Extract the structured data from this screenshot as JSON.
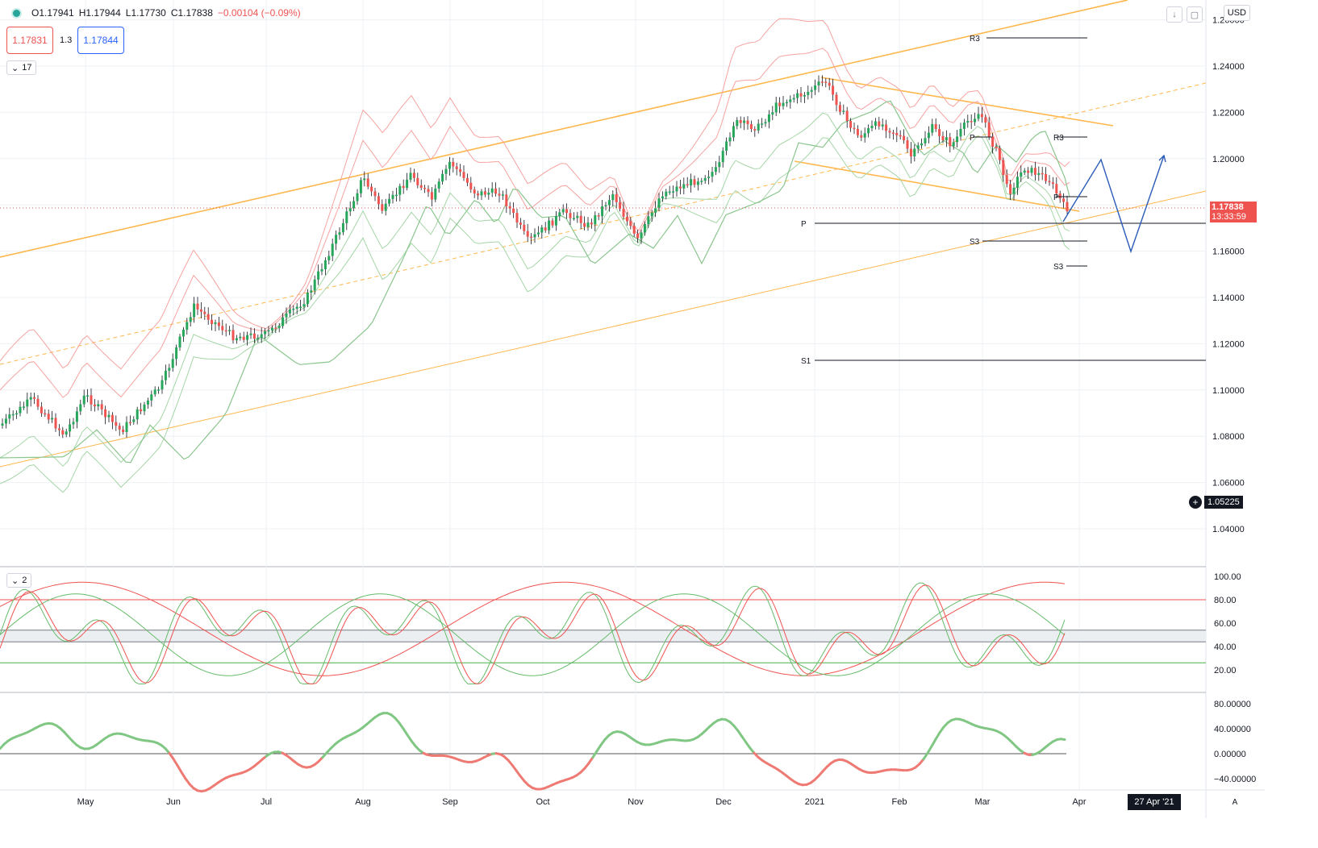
{
  "toolbar": {
    "ohlc": {
      "open": "O1.17941",
      "high": "H1.17944",
      "low": "L1.17730",
      "close": "C1.17838",
      "change": "−0.00104 (−0.09%)"
    },
    "sell_price": "1.17831",
    "spread": "1.3",
    "buy_price": "1.17844",
    "indicators_collapsed_count": "17",
    "currency": "USD"
  },
  "price_axis": {
    "ticks": [
      "1.26000",
      "1.24000",
      "1.22000",
      "1.20000",
      "1.18000",
      "1.16000",
      "1.14000",
      "1.12000",
      "1.10000",
      "1.08000",
      "1.06000",
      "1.04000"
    ],
    "current_price": "1.17838",
    "countdown": "13:33:59",
    "crosshair_price": "1.05225"
  },
  "time_axis": {
    "labels": [
      "May",
      "Jun",
      "Jul",
      "Aug",
      "Sep",
      "Oct",
      "Nov",
      "Dec",
      "2021",
      "Feb",
      "Mar",
      "Apr"
    ],
    "crosshair_date": "27 Apr '21"
  },
  "pivot_labels": [
    "R3",
    "R3",
    "P",
    "P",
    "P",
    "S3",
    "S3",
    "S1"
  ],
  "oscillator_pane": {
    "collapsed_count": "2",
    "axis_ticks": [
      "100.00",
      "80.00",
      "60.00",
      "40.00",
      "20.00"
    ]
  },
  "momentum_pane": {
    "axis_ticks": [
      "80.00000",
      "40.00000",
      "0.00000",
      "−40.00000"
    ]
  },
  "colors": {
    "up_candle": "#26a65b",
    "down_candle": "#ef5350",
    "channel": "#ffb74d",
    "bollinger_upper": "#f5a3a0",
    "bollinger_lower": "#a5d6a7",
    "projection": "#2a5bb8",
    "osc_fast": "#ef5350",
    "osc_slow": "#66bb6a",
    "momentum_pos": "#81c784",
    "momentum_neg": "#ef7a73"
  },
  "icons": [
    "status-dot-icon",
    "download-arrow-icon",
    "fullscreen-icon",
    "chevron-down-icon",
    "plus-circle-icon",
    "auto-scale-icon"
  ]
}
